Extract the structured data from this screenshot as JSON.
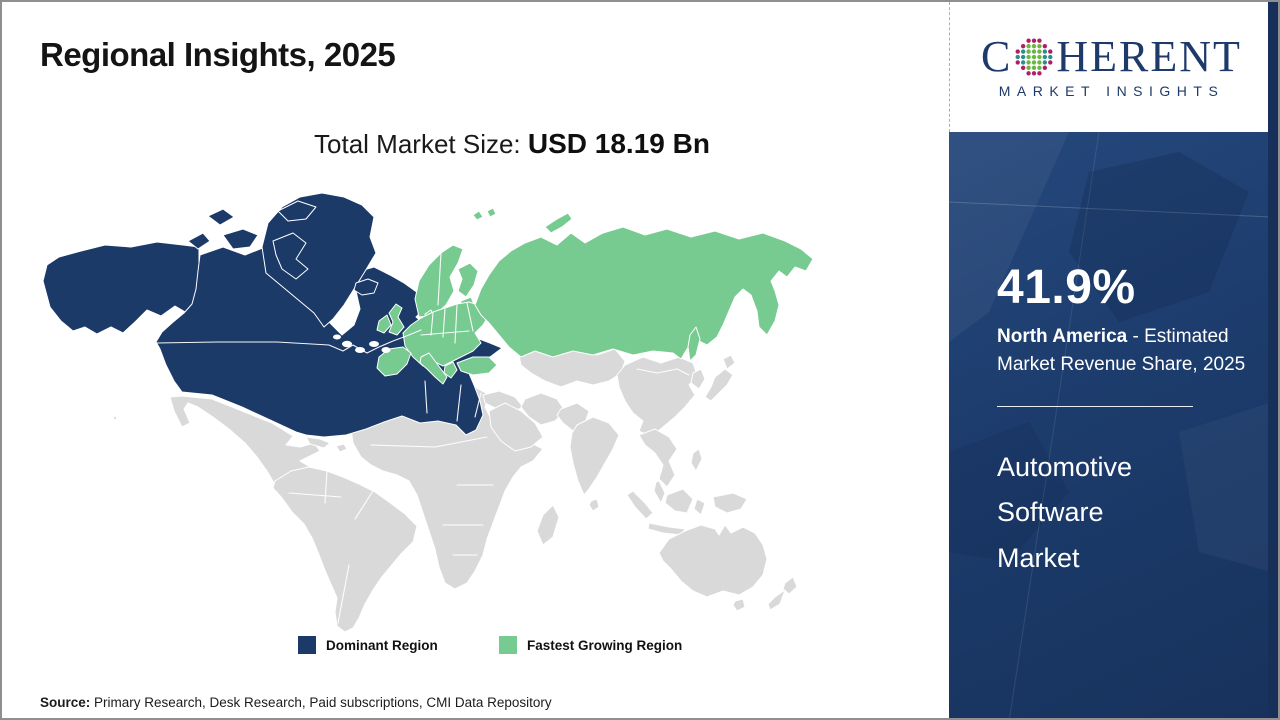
{
  "header": {
    "title": "Regional Insights, 2025"
  },
  "market_size": {
    "label": "Total Market Size: ",
    "value": "USD 18.19 Bn"
  },
  "logo": {
    "prefix": "C",
    "suffix": "HERENT",
    "subtitle": "MARKET INSIGHTS",
    "globe_colors": {
      "outer": "#B01E67",
      "mid": "#2A8F8A",
      "inner": "#6CB643"
    }
  },
  "sidebar": {
    "share_value": "41.9%",
    "region": "North America",
    "desc": "- Estimated Market Revenue Share, 2025",
    "market_name": "Automotive Software Market"
  },
  "legend": {
    "items": [
      {
        "label": "Dominant Region",
        "color": "#1B3A68"
      },
      {
        "label": "Fastest Growing Region",
        "color": "#77CA90"
      }
    ]
  },
  "source": {
    "label": "Source:",
    "text": " Primary Research, Desk Research, Paid subscriptions, CMI Data Repository"
  },
  "chart_data": {
    "type": "choropleth",
    "title": "Regional Insights, 2025",
    "total_market_size": "USD 18.19 Bn",
    "regions": [
      {
        "name": "North America",
        "role": "Dominant Region",
        "color": "#1B3A68",
        "value": 41.9,
        "value_label": "41.9% - Estimated Market Revenue Share, 2025"
      },
      {
        "name": "Europe & Russia",
        "role": "Fastest Growing Region",
        "color": "#77CA90"
      },
      {
        "name": "Rest of World",
        "role": "Unhighlighted",
        "color": "#D9D9D9"
      }
    ],
    "legend": [
      "Dominant Region",
      "Fastest Growing Region"
    ],
    "subject": "Automotive Software Market"
  }
}
